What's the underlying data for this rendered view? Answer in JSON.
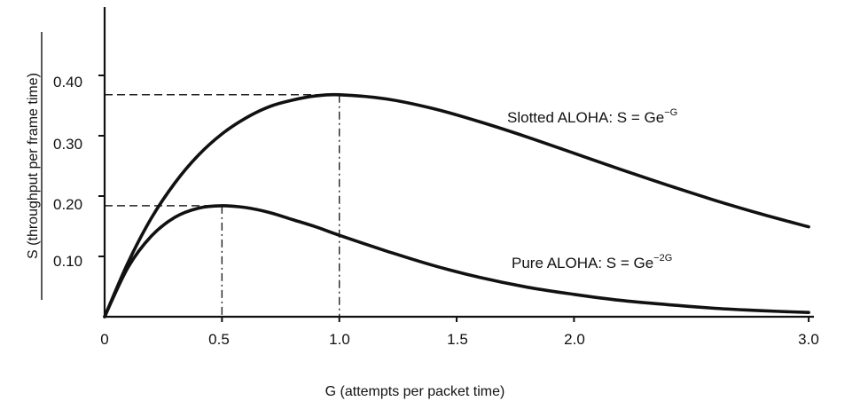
{
  "chart_data": {
    "type": "line",
    "title": "",
    "xlabel": "G (attempts per packet time)",
    "ylabel": "S (throughput per frame time)",
    "xlim": [
      0,
      3.0
    ],
    "ylim": [
      0,
      0.5
    ],
    "x_ticks": [
      "0",
      "0.5",
      "1.0",
      "1.5",
      "2.0",
      "3.0"
    ],
    "y_ticks": [
      "0.10",
      "0.20",
      "0.30",
      "0.40"
    ],
    "grid": false,
    "series": [
      {
        "name": "Slotted ALOHA",
        "formula_base": "S = Ge",
        "formula_exp": "−G",
        "x": [
          0,
          0.1,
          0.2,
          0.3,
          0.4,
          0.5,
          0.6,
          0.7,
          0.8,
          0.9,
          1.0,
          1.2,
          1.4,
          1.6,
          1.8,
          2.0,
          2.2,
          2.4,
          2.6,
          2.8,
          3.0
        ],
        "values": [
          0,
          0.09,
          0.164,
          0.222,
          0.268,
          0.303,
          0.329,
          0.348,
          0.359,
          0.366,
          0.368,
          0.361,
          0.345,
          0.323,
          0.298,
          0.271,
          0.244,
          0.218,
          0.193,
          0.17,
          0.149
        ]
      },
      {
        "name": "Pure ALOHA",
        "formula_base": "S = Ge",
        "formula_exp": "−2G",
        "x": [
          0,
          0.1,
          0.2,
          0.3,
          0.4,
          0.5,
          0.6,
          0.7,
          0.8,
          0.9,
          1.0,
          1.2,
          1.4,
          1.6,
          1.8,
          2.0,
          2.2,
          2.4,
          2.6,
          2.8,
          3.0
        ],
        "values": [
          0,
          0.082,
          0.134,
          0.165,
          0.18,
          0.184,
          0.181,
          0.173,
          0.161,
          0.149,
          0.135,
          0.109,
          0.085,
          0.065,
          0.049,
          0.037,
          0.027,
          0.02,
          0.014,
          0.01,
          0.007
        ]
      }
    ],
    "reference_lines": [
      {
        "x": 0.5,
        "y": 0.184
      },
      {
        "x": 1.0,
        "y": 0.368
      }
    ]
  }
}
